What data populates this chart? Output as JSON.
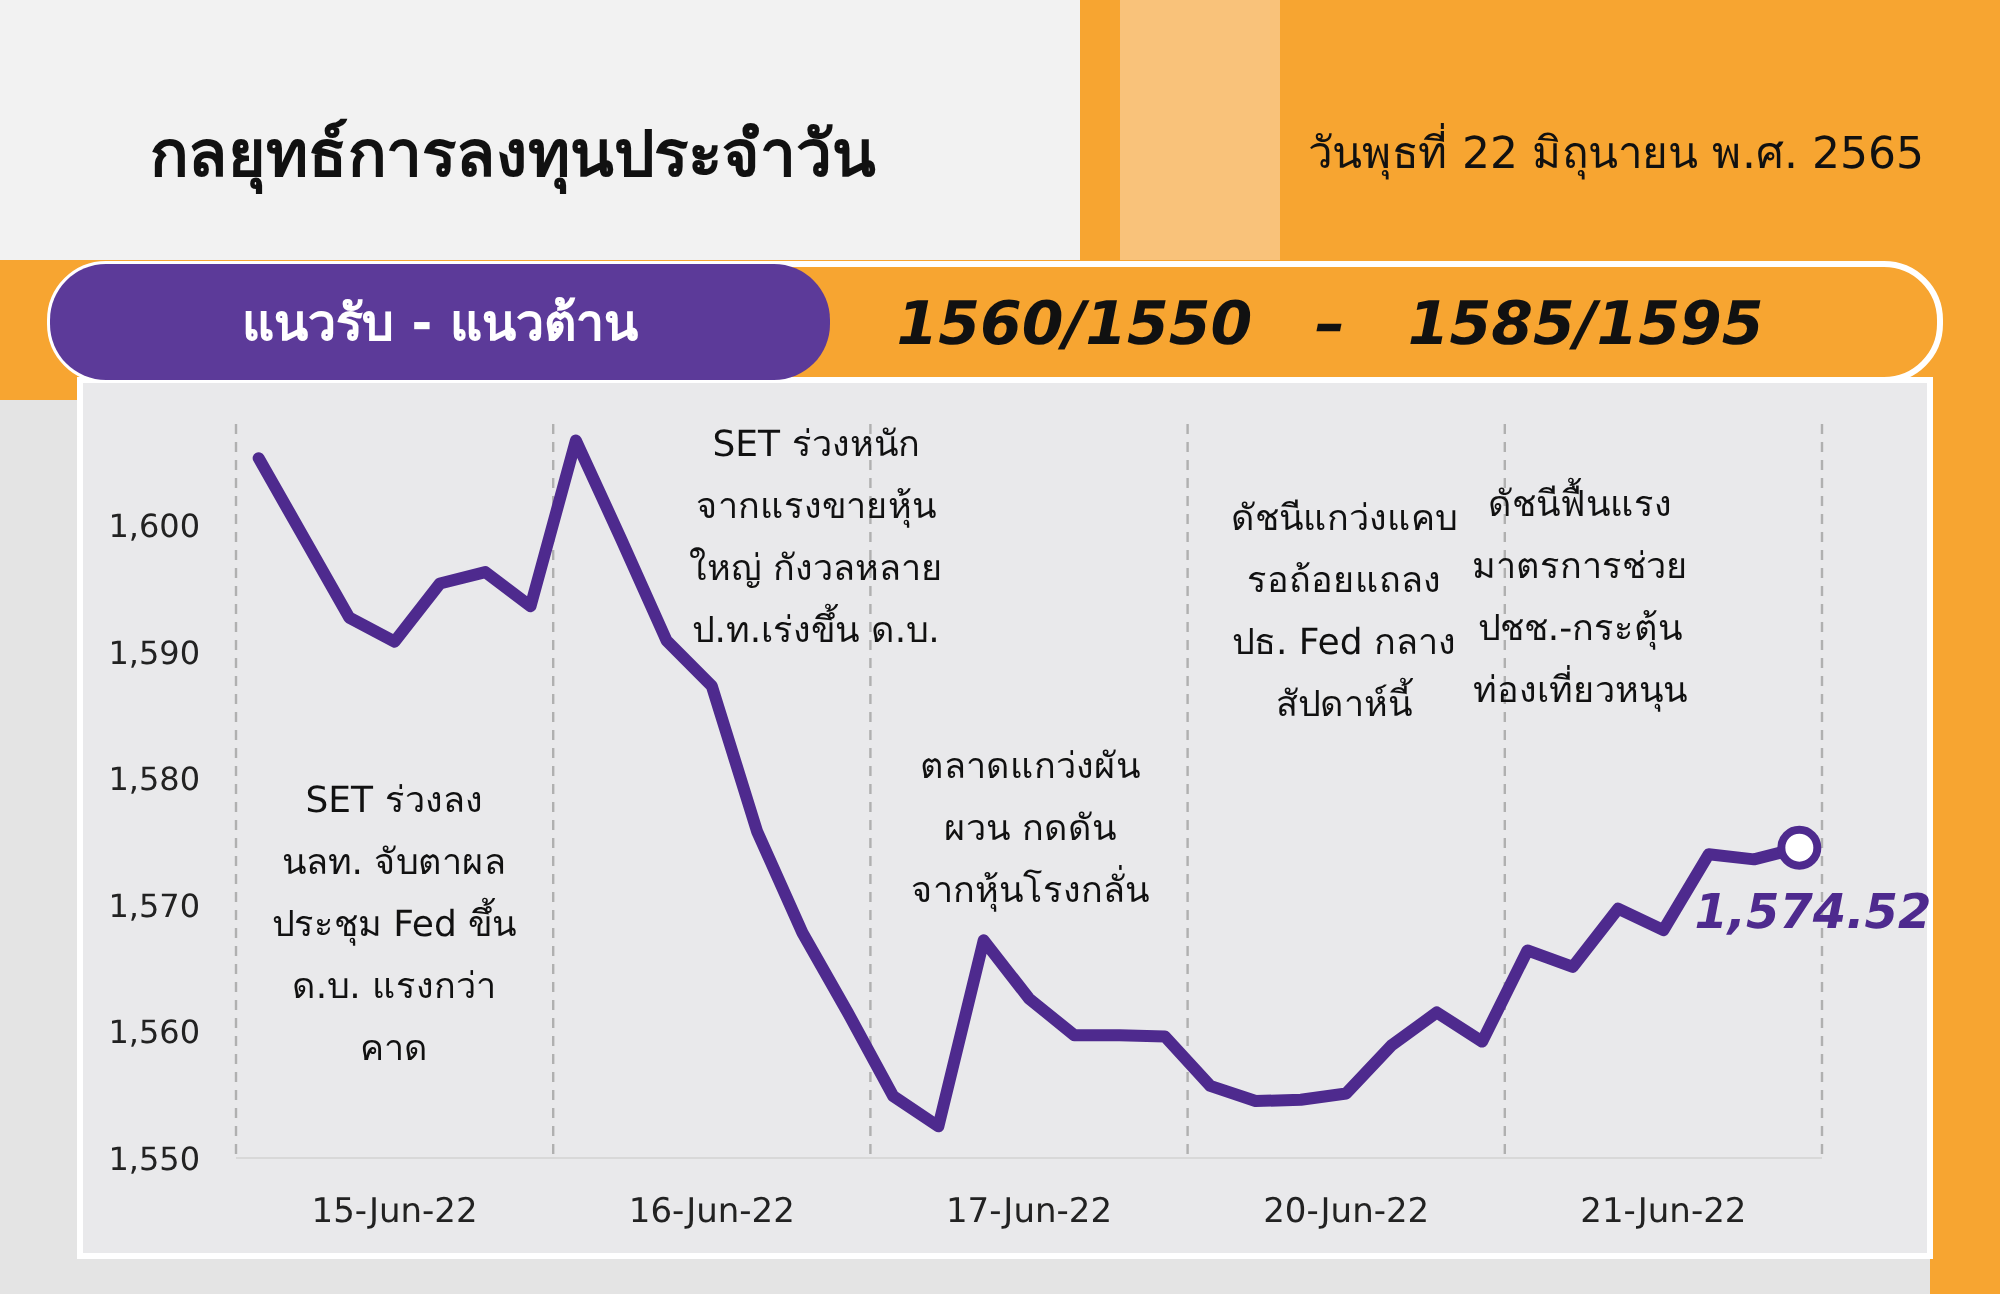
{
  "chart_data": {
    "type": "line",
    "title": "กลยุทธ์การลงทุนประจำวัน",
    "subtitle": "วันพุธที่ 22 มิถุนายน พ.ศ. 2565",
    "annotations": [
      "แนวรับ - แนวต้าน",
      "1560/1550   –   1585/1595",
      "SET ร่วงลง\nนลท. จับตาผล\nประชุม Fed ขึ้น\nด.บ. แรงกว่า\nคาด",
      "SET ร่วงหนัก\nจากแรงขายหุ้น\nใหญ่ กังวลหลาย\nป.ท.เร่งขึ้น ด.บ.",
      "ตลาดแกว่งผัน\nผวน กดดัน\nจากหุ้นโรงกลั่น",
      "ดัชนีแกว่งแคบ\nรอถ้อยแถลง\nปธ. Fed กลาง\nสัปดาห์นี้",
      "ดัชนีฟื้นแรง\nมาตรการช่วย\nปชช.-กระตุ้น\nท่องเที่ยวหนุน"
    ],
    "categories": [
      null,
      null,
      null,
      "15-Jun-22",
      null,
      null,
      null,
      null,
      null,
      null,
      "16-Jun-22",
      null,
      null,
      null,
      null,
      null,
      null,
      "17-Jun-22",
      null,
      null,
      null,
      null,
      null,
      null,
      "20-Jun-22",
      null,
      null,
      null,
      null,
      null,
      null,
      "21-Jun-22",
      null,
      null,
      null
    ],
    "ylim": [
      1550,
      1608
    ],
    "yticks": [
      {
        "value": 1550,
        "label": "1,550"
      },
      {
        "value": 1560,
        "label": "1,560"
      },
      {
        "value": 1570,
        "label": "1,570"
      },
      {
        "value": 1580,
        "label": "1,580"
      },
      {
        "value": 1590,
        "label": "1,590"
      },
      {
        "value": 1600,
        "label": "1,600"
      }
    ],
    "series": [
      {
        "type": "line",
        "color": "#4e2a8e",
        "values": [
          1605.3,
          1599.0,
          1592.7,
          1590.8,
          1595.4,
          1596.3,
          1593.6,
          1606.7,
          1598.9,
          1590.9,
          1587.3,
          1575.8,
          1567.8,
          1561.5,
          1554.9,
          1552.5,
          1567.2,
          1562.6,
          1559.7,
          1559.7,
          1559.6,
          1555.7,
          1554.5,
          1554.6,
          1555.1,
          1558.9,
          1561.5,
          1559.2,
          1566.4,
          1565.1,
          1569.7,
          1568.0,
          1574.0,
          1573.6,
          1574.5
        ]
      },
      {
        "type": "scatter",
        "color": "#4e2a8e",
        "marker": "circle",
        "values": [
          null,
          null,
          null,
          null,
          null,
          null,
          null,
          null,
          null,
          null,
          null,
          null,
          null,
          null,
          null,
          null,
          null,
          null,
          null,
          null,
          null,
          null,
          null,
          null,
          null,
          null,
          null,
          null,
          null,
          null,
          null,
          null,
          null,
          null,
          1574.52
        ],
        "value_labels": [
          null,
          null,
          null,
          null,
          null,
          null,
          null,
          null,
          null,
          null,
          null,
          null,
          null,
          null,
          null,
          null,
          null,
          null,
          null,
          null,
          null,
          null,
          null,
          null,
          null,
          null,
          null,
          null,
          null,
          null,
          null,
          null,
          null,
          null,
          "1,574.52"
        ]
      }
    ]
  }
}
